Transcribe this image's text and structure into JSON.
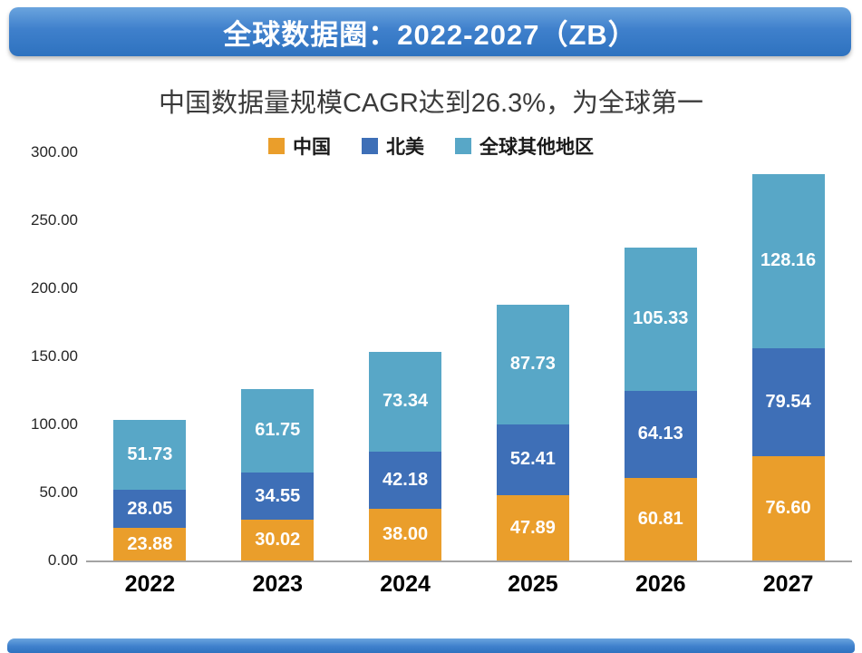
{
  "banner": {
    "title": "全球数据圈：2022-2027（ZB）"
  },
  "subtitle": "中国数据量规模CAGR达到26.3%，为全球第一",
  "chart_data": {
    "type": "bar",
    "stacked": true,
    "title": "全球数据圈：2022-2027（ZB）",
    "subtitle": "中国数据量规模CAGR达到26.3%，为全球第一",
    "categories": [
      "2022",
      "2023",
      "2024",
      "2025",
      "2026",
      "2027"
    ],
    "series": [
      {
        "name": "中国",
        "color": "#EA9E2B",
        "values": [
          23.88,
          30.02,
          38.0,
          47.89,
          60.81,
          76.6
        ]
      },
      {
        "name": "北美",
        "color": "#3E6FB7",
        "values": [
          28.05,
          34.55,
          42.18,
          52.41,
          64.13,
          79.54
        ]
      },
      {
        "name": "全球其他地区",
        "color": "#58A7C7",
        "values": [
          51.73,
          61.75,
          73.34,
          87.73,
          105.33,
          128.16
        ]
      }
    ],
    "totals": [
      103.66,
      126.32,
      153.52,
      188.03,
      230.27,
      284.3
    ],
    "ylim": [
      0,
      300
    ],
    "ytick_step": 50,
    "ytick_labels": [
      "0.00",
      "50.00",
      "100.00",
      "150.00",
      "200.00",
      "250.00",
      "300.00"
    ],
    "legend_position": "top",
    "grid": false,
    "data_label_color": "#ffffff"
  }
}
